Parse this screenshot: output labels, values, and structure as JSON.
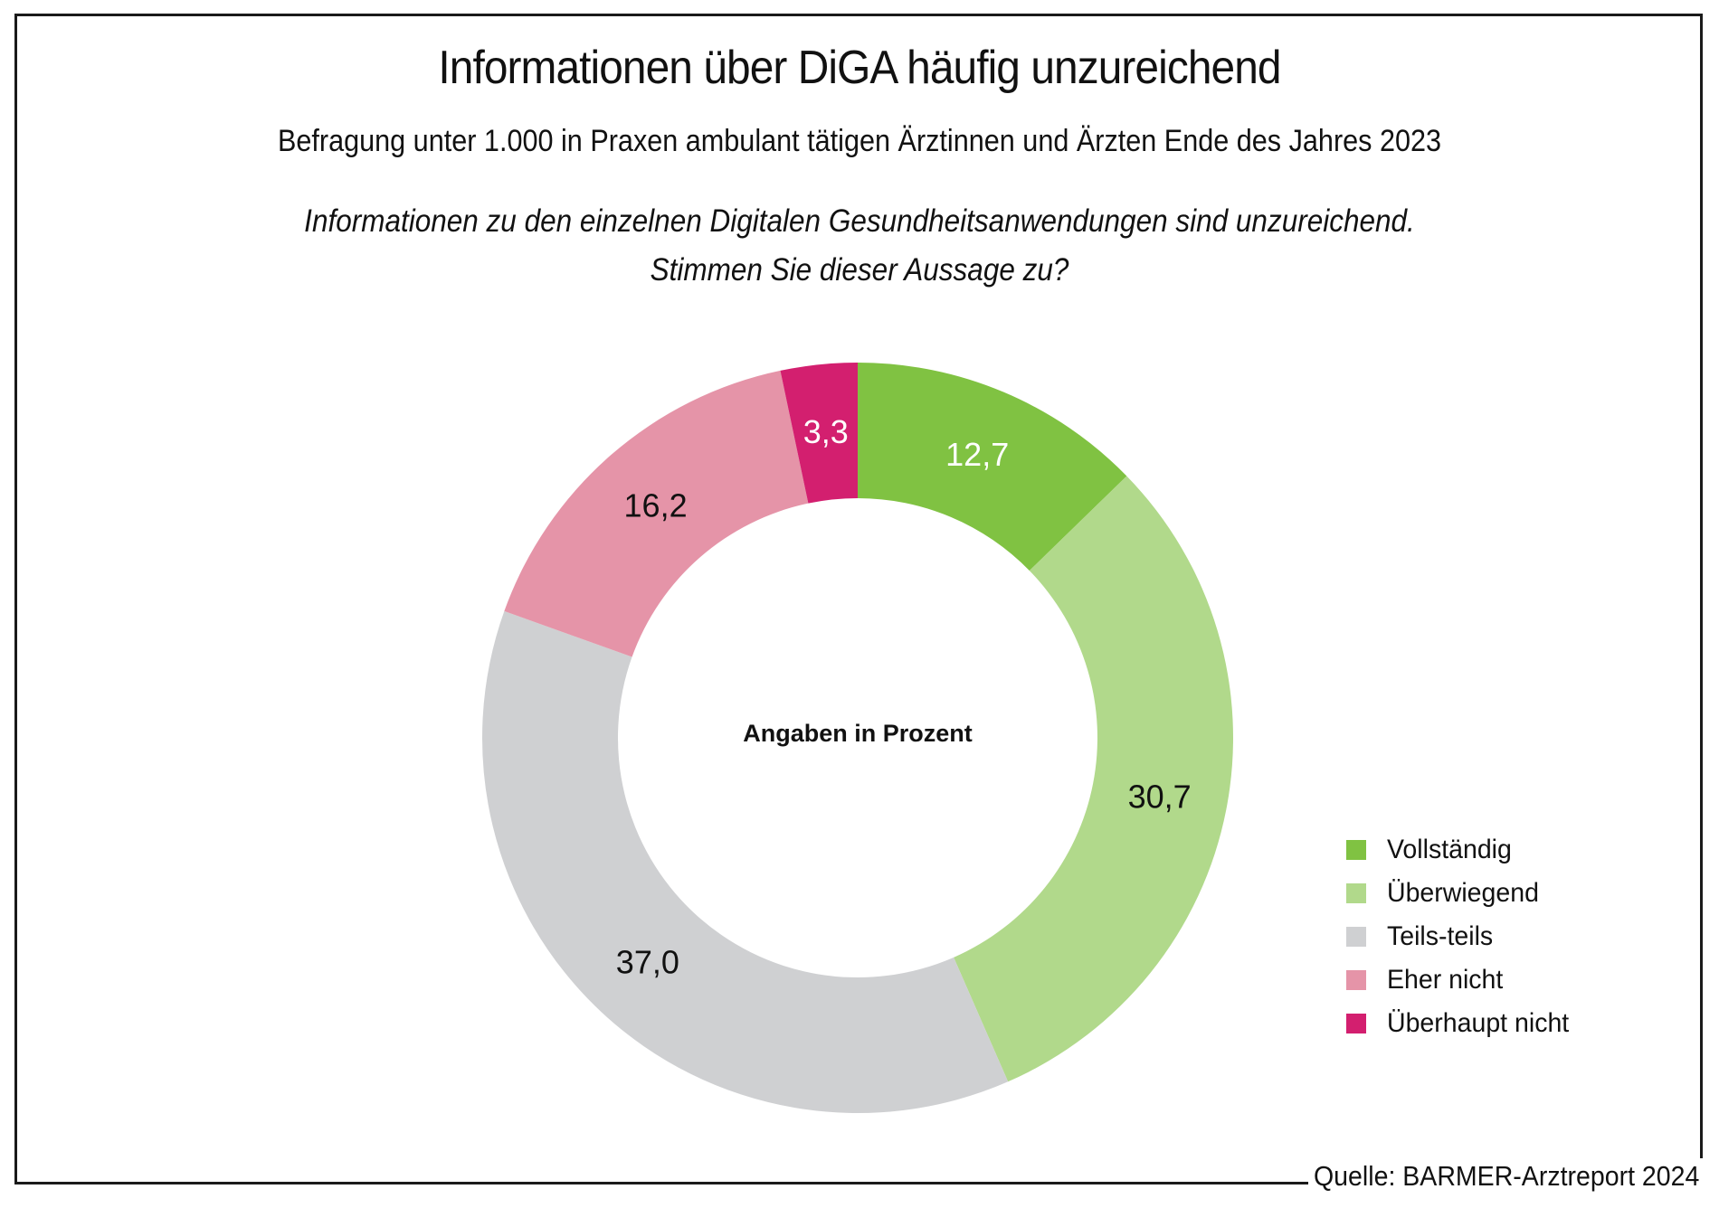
{
  "header": {
    "title": "Informationen über DiGA häufig unzureichend",
    "subtitle": "Befragung unter 1.000 in Praxen ambulant tätigen Ärztinnen und Ärzten Ende des Jahres 2023",
    "question_line1": "Informationen zu den einzelnen Digitalen Gesundheitsanwendungen sind unzureichend.",
    "question_line2": "Stimmen Sie dieser Aussage zu?"
  },
  "footer": {
    "source": "Quelle: BARMER-Arztreport 2024"
  },
  "chart_data": {
    "type": "pie",
    "variant": "donut",
    "title": "Informationen über DiGA häufig unzureichend",
    "subtitle": "Befragung unter 1.000 in Praxen ambulant tätigen Ärztinnen und Ärzten Ende des Jahres 2023",
    "center_label": "Angaben in Prozent",
    "unit": "%",
    "start_angle": "12 o'clock, clockwise",
    "legend_position": "right",
    "categories": [
      "Vollständig",
      "Überwiegend",
      "Teils-teils",
      "Eher nicht",
      "Überhaupt nicht"
    ],
    "values": [
      12.7,
      30.7,
      37.0,
      16.2,
      3.3
    ],
    "value_labels": [
      "12,7",
      "30,7",
      "37,0",
      "16,2",
      "3,3"
    ],
    "colors": [
      "#80c242",
      "#b1d98b",
      "#cfd0d2",
      "#e594a8",
      "#d31f6f"
    ],
    "label_colors": [
      "#ffffff",
      "#111111",
      "#111111",
      "#111111",
      "#ffffff"
    ]
  }
}
